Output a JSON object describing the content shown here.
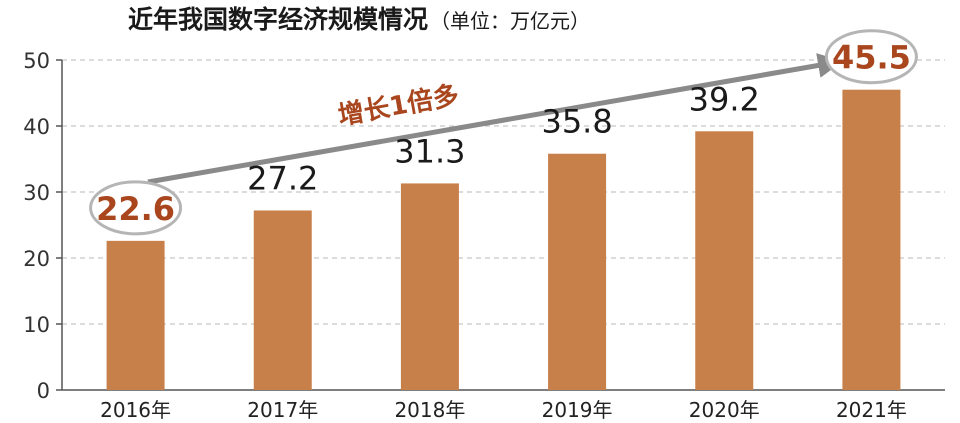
{
  "chart_data": {
    "type": "bar",
    "title": "近年我国数字经济规模情况",
    "subtitle": "（单位：万亿元）",
    "categories": [
      "2016年",
      "2017年",
      "2018年",
      "2019年",
      "2020年",
      "2021年"
    ],
    "values": [
      22.6,
      27.2,
      31.3,
      35.8,
      39.2,
      45.5
    ],
    "value_labels": [
      "22.6",
      "27.2",
      "31.3",
      "35.8",
      "39.2",
      "45.5"
    ],
    "highlighted_labels": [
      "2016年",
      "2021年"
    ],
    "yticks": [
      0,
      10,
      20,
      30,
      40,
      50
    ],
    "ylim": [
      0,
      50
    ],
    "xlabel": "",
    "ylabel": "",
    "grid": true,
    "annotation": "增长1倍多",
    "colors": {
      "bar": "#c8804b",
      "highlight_text": "#a9461e",
      "label_text": "#1a1a1a",
      "arrow": "#8a8a8a",
      "grid": "#c8c8c8"
    }
  }
}
